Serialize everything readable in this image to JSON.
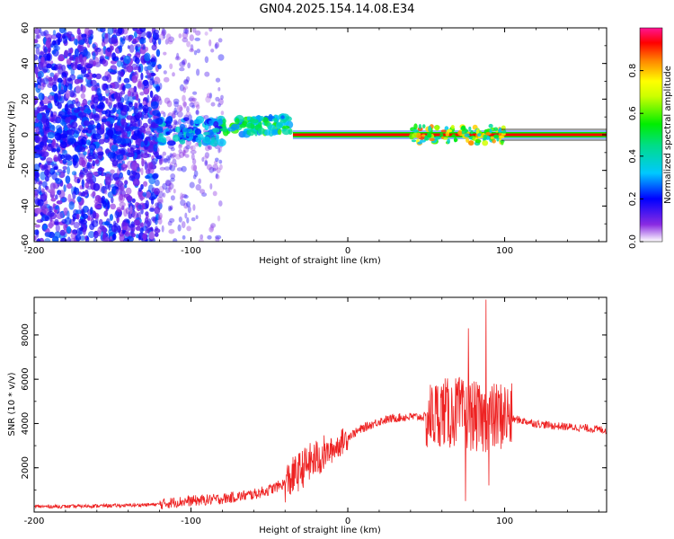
{
  "figure_title": "GN04.2025.154.14.08.E34",
  "colors": {
    "snr_line": "#ee2222",
    "colormap": [
      "#ffffff",
      "#8a2be2",
      "#0000ff",
      "#00c8ff",
      "#00e000",
      "#ffff00",
      "#ff8000",
      "#ff0000",
      "#ff1493"
    ]
  },
  "chart_data": [
    {
      "type": "heatmap",
      "title": "",
      "xlabel": "Height of straight line (km)",
      "ylabel": "Frequency (Hz)",
      "xlim": [
        -200,
        165
      ],
      "ylim": [
        -60,
        60
      ],
      "x_ticks": [
        "-200",
        "-100",
        "0",
        "100"
      ],
      "y_ticks": [
        "-60",
        "-40",
        "-20",
        "0",
        "20",
        "40",
        "60"
      ],
      "colorbar": {
        "label": "Normalized spectral amplitude",
        "range": [
          0.0,
          1.0
        ],
        "ticks": [
          "0.0",
          "0.2",
          "0.4",
          "0.6",
          "0.8"
        ]
      },
      "features": [
        {
          "x_range": [
            -200,
            -120
          ],
          "description": "diffuse purple noise across all frequencies",
          "amplitude": 0.1
        },
        {
          "x_range": [
            -120,
            -80
          ],
          "description": "sparse noise, blue blobs near 0 Hz",
          "amplitude": 0.25
        },
        {
          "x_range": [
            -80,
            -35
          ],
          "description": "signal near 0 to +10 Hz, cyan/green",
          "amplitude": 0.45
        },
        {
          "x_range": [
            -35,
            165
          ],
          "description": "narrow red line at 0 Hz",
          "amplitude": 0.9
        }
      ]
    },
    {
      "type": "line",
      "title": "",
      "xlabel": "Height of straight line (km)",
      "ylabel": "SNR (10 * v/v)",
      "xlim": [
        -200,
        165
      ],
      "ylim": [
        0,
        9700
      ],
      "x_ticks": [
        "-200",
        "-100",
        "0",
        "100"
      ],
      "y_ticks": [
        "2000",
        "4000",
        "6000",
        "8000"
      ],
      "series": [
        {
          "x": [
            -200,
            -180,
            -160,
            -140,
            -120,
            -110,
            -100,
            -90,
            -80,
            -70,
            -60,
            -50,
            -40,
            -35,
            -30,
            -25,
            -20,
            -15,
            -10,
            -5,
            0,
            10,
            20,
            30,
            40,
            50,
            55,
            60,
            65,
            70,
            75,
            80,
            85,
            88,
            90,
            95,
            100,
            105,
            110,
            120,
            130,
            140,
            150,
            165
          ],
          "y": [
            250,
            250,
            280,
            300,
            350,
            450,
            500,
            550,
            600,
            700,
            800,
            1000,
            1300,
            1600,
            1900,
            2200,
            2400,
            2600,
            2800,
            3100,
            3400,
            3800,
            4100,
            4250,
            4300,
            4300,
            4350,
            4600,
            4400,
            4600,
            4300,
            4400,
            4100,
            4300,
            4200,
            4300,
            4400,
            4200,
            4150,
            4000,
            3900,
            3850,
            3800,
            3700
          ]
        }
      ],
      "peak_annotations": [
        {
          "x": 88,
          "y": 9600
        },
        {
          "x": 77,
          "y": 8300
        },
        {
          "x": 75,
          "y": 500
        },
        {
          "x": 90,
          "y": 1200
        }
      ]
    }
  ]
}
